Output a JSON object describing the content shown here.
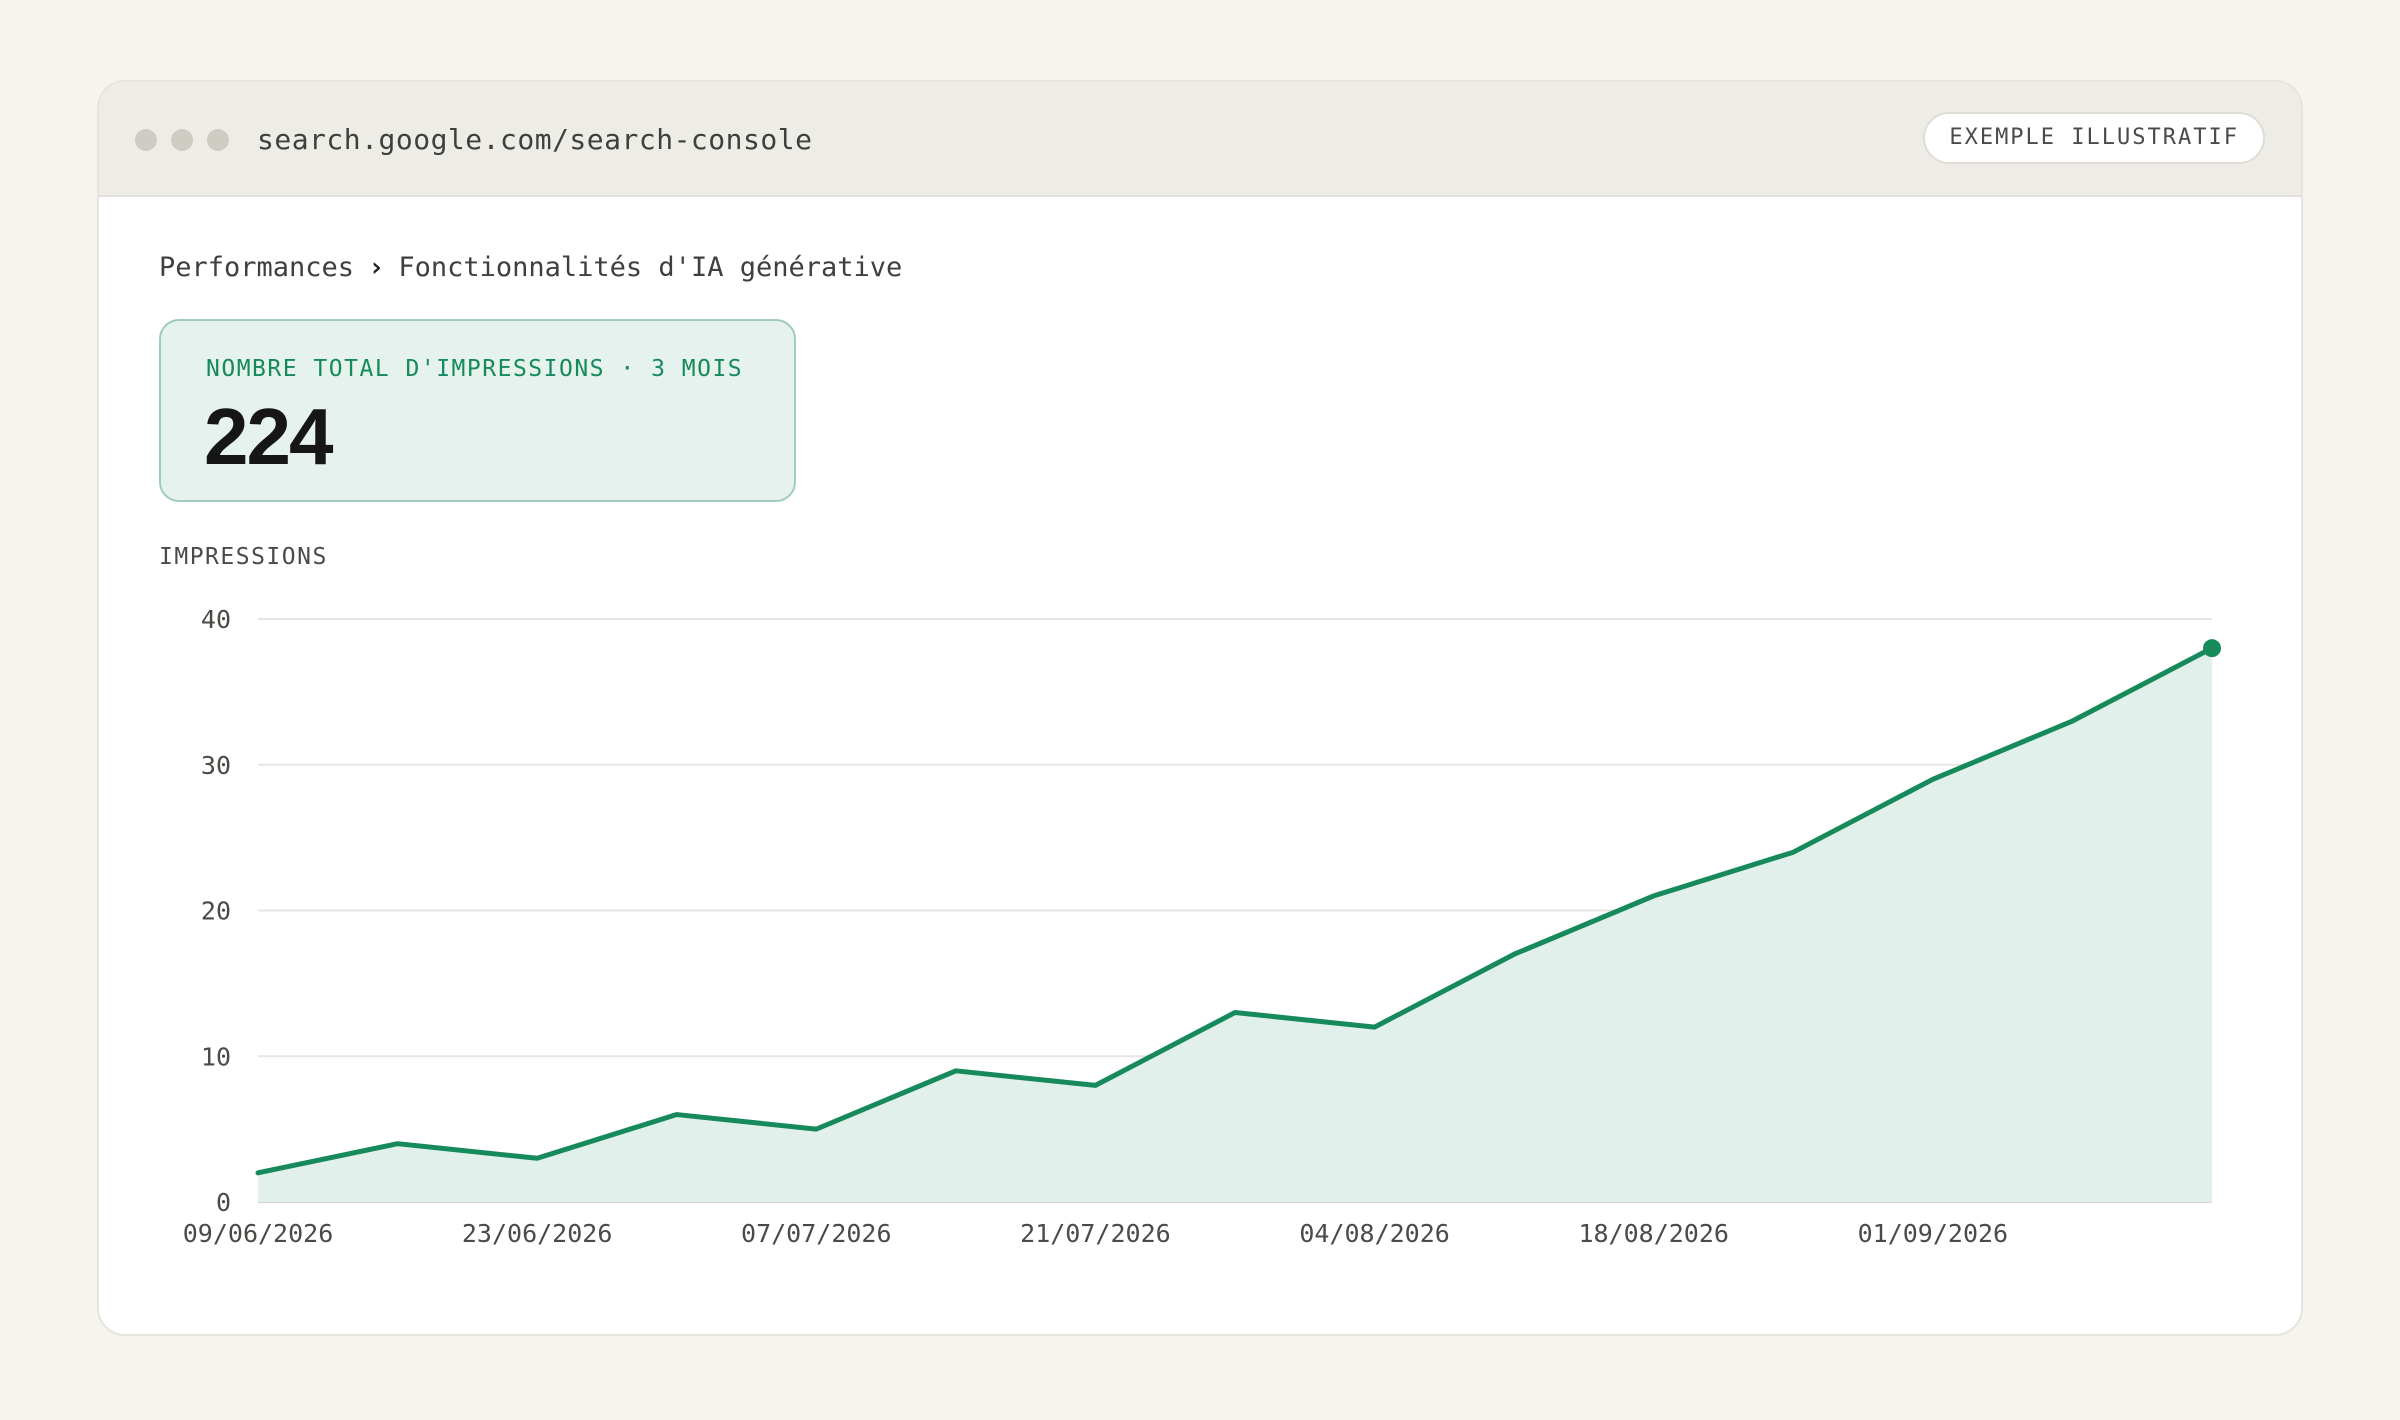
{
  "window": {
    "url": "search.google.com/search-console",
    "badge": "EXEMPLE ILLUSTRATIF",
    "colors": {
      "dot": "#cfccc3",
      "accent": "#178a5c"
    }
  },
  "breadcrumb": {
    "parent": "Performances",
    "separator": "›",
    "current": "Fonctionnalités d'IA générative"
  },
  "kpi": {
    "label": "NOMBRE TOTAL D'IMPRESSIONS · 3 MOIS",
    "value": "224"
  },
  "chart_data": {
    "type": "area",
    "ylabel": "IMPRESSIONS",
    "xlabel": "",
    "ylim": [
      0,
      40
    ],
    "yticks": [
      0,
      10,
      20,
      30,
      40
    ],
    "grid": true,
    "x": [
      "09/06/2026",
      "16/06/2026",
      "23/06/2026",
      "30/06/2026",
      "07/07/2026",
      "14/07/2026",
      "21/07/2026",
      "28/07/2026",
      "04/08/2026",
      "11/08/2026",
      "18/08/2026",
      "25/08/2026",
      "01/09/2026",
      "08/09/2026",
      "15/09/2026"
    ],
    "xtick_labels": [
      "09/06/2026",
      "23/06/2026",
      "07/07/2026",
      "21/07/2026",
      "04/08/2026",
      "18/08/2026",
      "01/09/2026"
    ],
    "series": [
      {
        "values": [
          2,
          4,
          3,
          6,
          5,
          9,
          8,
          13,
          12,
          17,
          21,
          24,
          29,
          33,
          38
        ],
        "color": "#178a5c",
        "fill": "#e1f0ea"
      }
    ]
  }
}
